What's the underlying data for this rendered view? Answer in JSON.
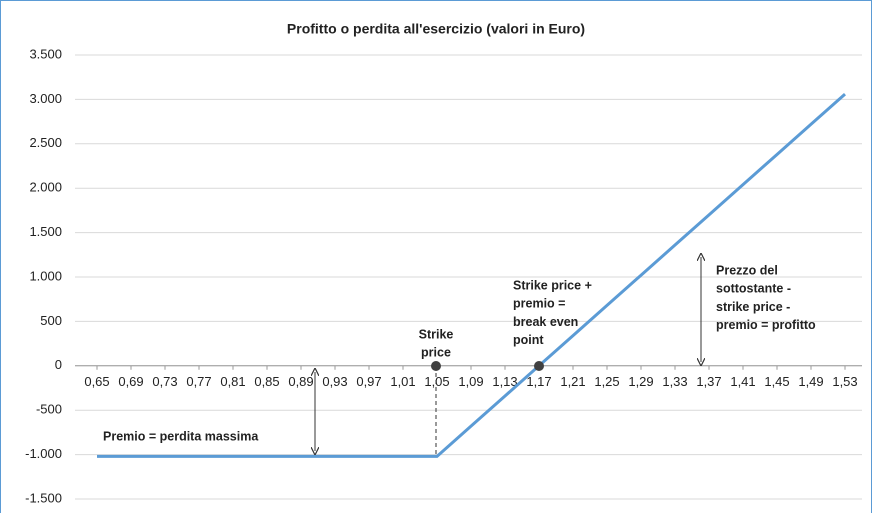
{
  "chart_data": {
    "type": "line",
    "title": "Profitto o perdita all'esercizio (valori in Euro)",
    "categories": [
      "0,65",
      "0,69",
      "0,73",
      "0,77",
      "0,81",
      "0,85",
      "0,89",
      "0,93",
      "0,97",
      "1,01",
      "1,05",
      "1,09",
      "1,13",
      "1,17",
      "1,21",
      "1,25",
      "1,29",
      "1,33",
      "1,37",
      "1,41",
      "1,45",
      "1,49",
      "1,53"
    ],
    "values": [
      -1020,
      -1020,
      -1020,
      -1020,
      -1020,
      -1020,
      -1020,
      -1020,
      -1020,
      -1020,
      -1020,
      -680,
      -340,
      0,
      340,
      680,
      1020,
      1360,
      1700,
      2040,
      2380,
      2720,
      3060
    ],
    "color": "#5b9bd5",
    "ylim": [
      -1500,
      3500
    ],
    "yticks": [
      {
        "value": -1500,
        "label": "-1.500"
      },
      {
        "value": -1000,
        "label": "-1.000"
      },
      -500,
      0,
      500,
      {
        "value": 1000,
        "label": "1.000"
      },
      {
        "value": 1500,
        "label": "1.500"
      },
      {
        "value": 2000,
        "label": "2.000"
      },
      {
        "value": 2500,
        "label": "2.500"
      },
      {
        "value": 3000,
        "label": "3.000"
      },
      {
        "value": 3500,
        "label": "3.500"
      }
    ],
    "grid": true,
    "annotations": [
      [
        "Premio = perdita massima"
      ],
      [
        "Strike",
        "price"
      ],
      [
        "Strike price +",
        "premio =",
        "break even",
        "point"
      ],
      [
        "Prezzo del",
        "sottostante -",
        "strike price -",
        "premio = profitto"
      ]
    ]
  }
}
